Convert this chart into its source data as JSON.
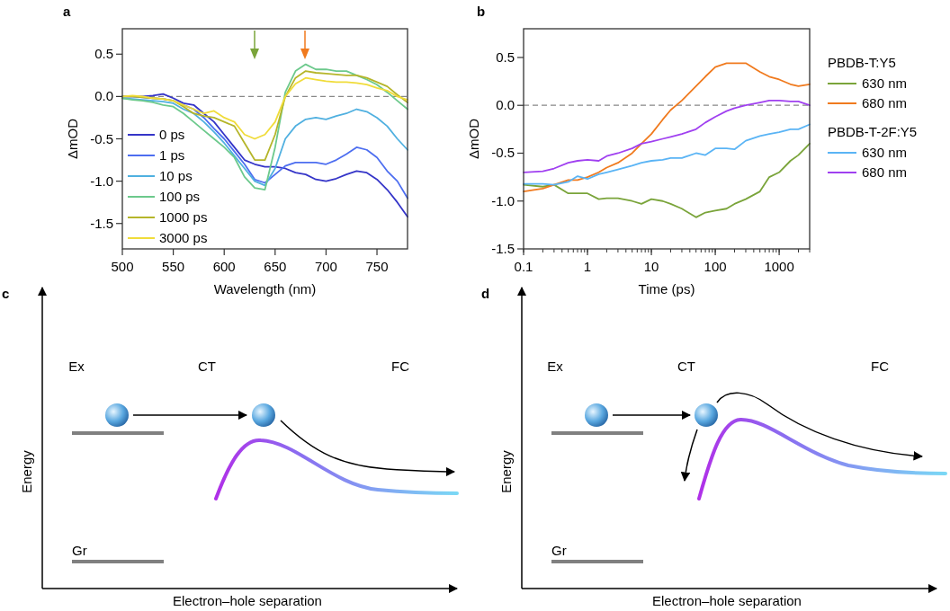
{
  "chart_data": [
    {
      "type": "line",
      "title": "a",
      "xlabel": "Wavelength (nm)",
      "ylabel": "ΔmOD",
      "x": [
        500,
        510,
        520,
        530,
        540,
        550,
        560,
        570,
        580,
        590,
        600,
        610,
        620,
        630,
        640,
        650,
        660,
        670,
        680,
        690,
        700,
        710,
        720,
        730,
        740,
        750,
        760,
        770,
        780
      ],
      "xlim": [
        500,
        780
      ],
      "xticks": [
        500,
        550,
        600,
        650,
        700,
        750
      ],
      "ylim": [
        -1.8,
        0.8
      ],
      "yticks": [
        {
          "value": -1.5,
          "label": "-1.5"
        },
        {
          "value": -1,
          "label": "-1.0"
        },
        {
          "value": -0.5,
          "label": "-0.5"
        },
        {
          "value": 0,
          "label": "0.0"
        },
        {
          "value": 0.5,
          "label": "0.5"
        }
      ],
      "legend": "bottom left",
      "grid": false,
      "line_style": "solid",
      "marker": "none",
      "ref_lines": [
        {
          "axis": "y",
          "value": 0,
          "color": "#888888",
          "line_style": "dashed"
        }
      ],
      "series": [
        {
          "name": "0 ps",
          "color": "#3535c8",
          "values": [
            0,
            0,
            0,
            0.01,
            0.03,
            -0.02,
            -0.08,
            -0.1,
            -0.2,
            -0.3,
            -0.45,
            -0.6,
            -0.75,
            -0.8,
            -0.83,
            -0.83,
            -0.85,
            -0.9,
            -0.92,
            -0.98,
            -1.0,
            -0.97,
            -0.92,
            -0.88,
            -0.9,
            -0.98,
            -1.1,
            -1.25,
            -1.42
          ]
        },
        {
          "name": "1 ps",
          "color": "#4d6ef0",
          "values": [
            0,
            0,
            -0.01,
            -0.02,
            -0.03,
            -0.05,
            -0.1,
            -0.15,
            -0.25,
            -0.38,
            -0.5,
            -0.65,
            -0.8,
            -0.98,
            -1.02,
            -0.92,
            -0.82,
            -0.78,
            -0.78,
            -0.78,
            -0.8,
            -0.75,
            -0.68,
            -0.6,
            -0.63,
            -0.72,
            -0.88,
            -1.0,
            -1.2
          ]
        },
        {
          "name": "10 ps",
          "color": "#50b0e0",
          "values": [
            -0.02,
            -0.03,
            -0.04,
            -0.05,
            -0.06,
            -0.08,
            -0.15,
            -0.2,
            -0.3,
            -0.42,
            -0.55,
            -0.7,
            -0.85,
            -1.0,
            -1.05,
            -0.85,
            -0.5,
            -0.35,
            -0.27,
            -0.25,
            -0.27,
            -0.23,
            -0.2,
            -0.15,
            -0.18,
            -0.25,
            -0.35,
            -0.5,
            -0.63
          ]
        },
        {
          "name": "100 ps",
          "color": "#6cc98c",
          "values": [
            -0.02,
            -0.04,
            -0.05,
            -0.07,
            -0.1,
            -0.12,
            -0.2,
            -0.3,
            -0.4,
            -0.5,
            -0.6,
            -0.72,
            -0.95,
            -1.08,
            -1.1,
            -0.6,
            0.05,
            0.3,
            0.38,
            0.32,
            0.32,
            0.3,
            0.3,
            0.25,
            0.2,
            0.14,
            0.05,
            -0.05,
            -0.15
          ]
        },
        {
          "name": "1000 ps",
          "color": "#b5b52a",
          "values": [
            0,
            0,
            -0.01,
            -0.02,
            -0.03,
            -0.05,
            -0.12,
            -0.2,
            -0.23,
            -0.25,
            -0.3,
            -0.35,
            -0.55,
            -0.75,
            -0.75,
            -0.45,
            0,
            0.22,
            0.3,
            0.28,
            0.27,
            0.26,
            0.25,
            0.25,
            0.22,
            0.17,
            0.12,
            0.02,
            -0.07
          ]
        },
        {
          "name": "3000 ps",
          "color": "#f0dc3a",
          "values": [
            0,
            0.01,
            0,
            -0.02,
            -0.03,
            -0.05,
            -0.1,
            -0.15,
            -0.2,
            -0.17,
            -0.25,
            -0.3,
            -0.45,
            -0.5,
            -0.45,
            -0.3,
            0,
            0.15,
            0.22,
            0.2,
            0.18,
            0.17,
            0.17,
            0.16,
            0.14,
            0.1,
            0.07,
            0,
            -0.04
          ]
        }
      ]
    },
    {
      "type": "line",
      "title": "b",
      "xlabel": "Time (ps)",
      "ylabel": "ΔmOD",
      "log": "x",
      "x": [
        0.1,
        0.2,
        0.3,
        0.5,
        0.7,
        1,
        1.5,
        2,
        3,
        5,
        7,
        10,
        15,
        20,
        30,
        50,
        70,
        100,
        150,
        200,
        300,
        500,
        700,
        1000,
        1500,
        2000,
        3000
      ],
      "xlim": [
        0.1,
        3000
      ],
      "xticks": [
        0.1,
        1,
        10,
        100,
        1000
      ],
      "ylim": [
        -1.5,
        0.8
      ],
      "yticks": [
        {
          "value": -1.5,
          "label": "-1.5"
        },
        {
          "value": -1,
          "label": "-1.0"
        },
        {
          "value": -0.5,
          "label": "-0.5"
        },
        {
          "value": 0,
          "label": "0.0"
        },
        {
          "value": 0.5,
          "label": "0.5"
        }
      ],
      "legend": "right",
      "grid": false,
      "line_style": "solid",
      "marker": "none",
      "annotations": [
        "PBDB-T:Y5",
        "PBDB-T-2F:Y5"
      ],
      "ref_lines": [
        {
          "axis": "y",
          "value": 0,
          "color": "#888888",
          "line_style": "dashed"
        }
      ],
      "series": [
        {
          "name": "630 nm",
          "color": "#7aa43a",
          "values": [
            -0.83,
            -0.85,
            -0.83,
            -0.92,
            -0.92,
            -0.92,
            -0.98,
            -0.97,
            -0.97,
            -1.0,
            -1.03,
            -0.98,
            -1.0,
            -1.03,
            -1.08,
            -1.17,
            -1.12,
            -1.1,
            -1.08,
            -1.03,
            -0.98,
            -0.9,
            -0.75,
            -0.7,
            -0.58,
            -0.52,
            -0.4
          ]
        },
        {
          "name": "680 nm",
          "color": "#f07a1e",
          "values": [
            -0.9,
            -0.87,
            -0.83,
            -0.78,
            -0.78,
            -0.75,
            -0.7,
            -0.65,
            -0.6,
            -0.5,
            -0.4,
            -0.3,
            -0.15,
            -0.05,
            0.05,
            0.2,
            0.3,
            0.4,
            0.44,
            0.44,
            0.44,
            0.35,
            0.3,
            0.27,
            0.22,
            0.2,
            0.22
          ]
        },
        {
          "name": "630 nm",
          "color": "#5ab4f5",
          "values": [
            -0.82,
            -0.82,
            -0.83,
            -0.8,
            -0.74,
            -0.77,
            -0.72,
            -0.7,
            -0.67,
            -0.63,
            -0.6,
            -0.58,
            -0.57,
            -0.55,
            -0.55,
            -0.5,
            -0.52,
            -0.45,
            -0.45,
            -0.46,
            -0.37,
            -0.32,
            -0.3,
            -0.28,
            -0.25,
            -0.25,
            -0.2
          ]
        },
        {
          "name": "680 nm",
          "color": "#a040f0",
          "values": [
            -0.7,
            -0.69,
            -0.66,
            -0.6,
            -0.58,
            -0.57,
            -0.58,
            -0.53,
            -0.5,
            -0.45,
            -0.4,
            -0.38,
            -0.35,
            -0.33,
            -0.3,
            -0.25,
            -0.18,
            -0.12,
            -0.06,
            -0.03,
            0,
            0.03,
            0.05,
            0.05,
            0.04,
            0.04,
            0
          ]
        }
      ]
    },
    {
      "type": "other",
      "title": "c",
      "xlabel": "Electron–hole separation",
      "ylabel": "Energy",
      "annotations": [
        "Ex",
        "CT",
        "FC",
        "Gr"
      ]
    },
    {
      "type": "other",
      "title": "d",
      "xlabel": "Electron–hole separation",
      "ylabel": "Energy",
      "annotations": [
        "Ex",
        "CT",
        "FC",
        "Gr"
      ]
    }
  ]
}
